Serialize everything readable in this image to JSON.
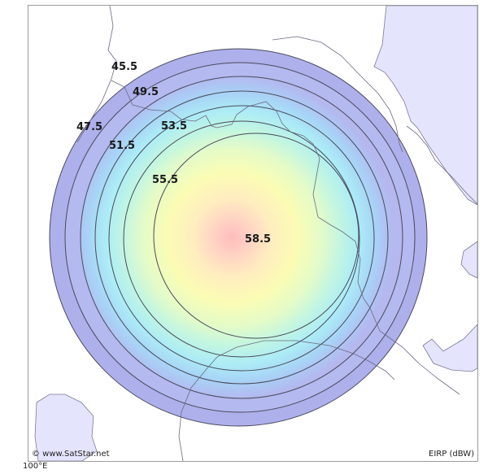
{
  "map": {
    "copyright": "© www.SatStar.net",
    "units_label": "EIRP (dBW)",
    "longitude_label": "100°E",
    "colors": {
      "land": "#e4e4fc",
      "land_border": "#7a7a9a",
      "contour_line": "#4a4a5a",
      "outer_band": "#aeb0ec",
      "center_peak": "#ffc0c0"
    }
  },
  "contours": [
    {
      "value": "45.5"
    },
    {
      "value": "47.5"
    },
    {
      "value": "49.5"
    },
    {
      "value": "51.5"
    },
    {
      "value": "53.5"
    },
    {
      "value": "55.5"
    },
    {
      "value": "58.5"
    }
  ]
}
